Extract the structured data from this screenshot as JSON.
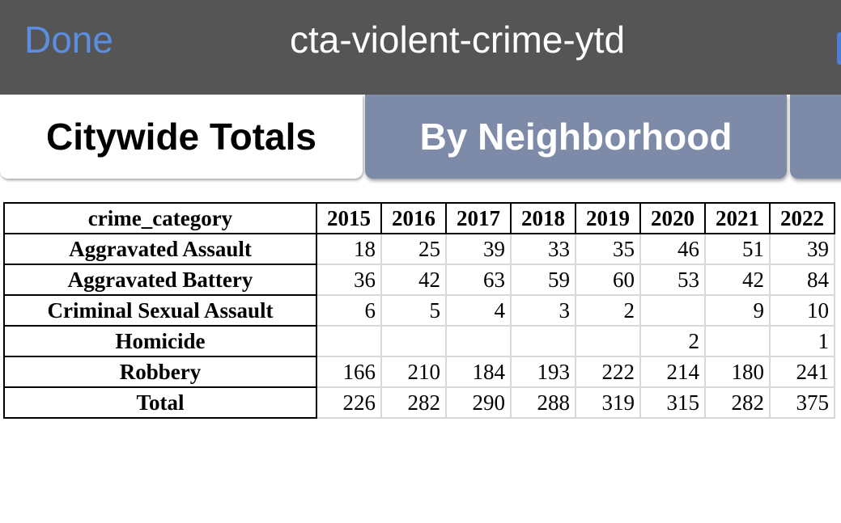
{
  "header": {
    "done": "Done",
    "title": "cta-violent-crime-ytd"
  },
  "tabs": [
    "Citywide Totals",
    "By Neighborhood"
  ],
  "table": {
    "columns": [
      "crime_category",
      "2015",
      "2016",
      "2017",
      "2018",
      "2019",
      "2020",
      "2021",
      "2022"
    ],
    "rows": [
      [
        "Aggravated Assault",
        18,
        25,
        39,
        33,
        35,
        46,
        51,
        39
      ],
      [
        "Aggravated Battery",
        36,
        42,
        63,
        59,
        60,
        53,
        42,
        84
      ],
      [
        "Criminal Sexual Assault",
        6,
        5,
        4,
        3,
        2,
        null,
        9,
        10
      ],
      [
        "Homicide",
        null,
        null,
        null,
        null,
        null,
        2,
        null,
        1
      ],
      [
        "Robbery",
        166,
        210,
        184,
        193,
        222,
        214,
        180,
        241
      ],
      [
        "Total",
        226,
        282,
        290,
        288,
        319,
        315,
        282,
        375
      ]
    ]
  }
}
